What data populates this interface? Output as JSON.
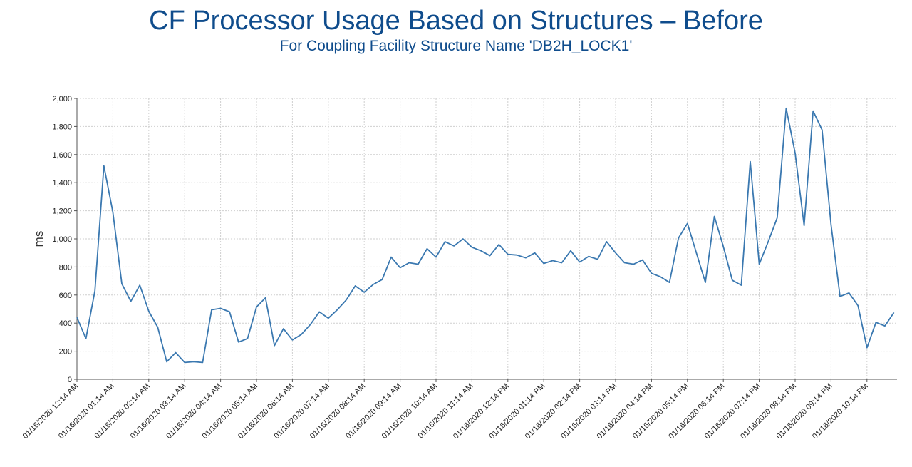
{
  "chart_data": {
    "type": "line",
    "title": "CF Processor Usage Based on Structures – Before",
    "subtitle": "For Coupling Facility Structure Name 'DB2H_LOCK1'",
    "xlabel": "",
    "ylabel": "ms",
    "ylim": [
      0,
      2000
    ],
    "yticks": [
      "0",
      "200",
      "400",
      "600",
      "800",
      "1,000",
      "1,200",
      "1,400",
      "1,600",
      "1,800",
      "2,000"
    ],
    "grid": true,
    "line_color": "#3a78b0",
    "title_color": "#0f4c8c",
    "x_tick_labels": [
      "01/16/2020 12:14 AM",
      "01/16/2020 01:14 AM",
      "01/16/2020 02:14 AM",
      "01/16/2020 03:14 AM",
      "01/16/2020 04:14 AM",
      "01/16/2020 05:14 AM",
      "01/16/2020 06:14 AM",
      "01/16/2020 07:14 AM",
      "01/16/2020 08:14 AM",
      "01/16/2020 09:14 AM",
      "01/16/2020 10:14 AM",
      "01/16/2020 11:14 AM",
      "01/16/2020 12:14 PM",
      "01/16/2020 01:14 PM",
      "01/16/2020 02:14 PM",
      "01/16/2020 03:14 PM",
      "01/16/2020 04:14 PM",
      "01/16/2020 05:14 PM",
      "01/16/2020 06:14 PM",
      "01/16/2020 07:14 PM",
      "01/16/2020 08:14 PM",
      "01/16/2020 09:14 PM",
      "01/16/2020 10:14 PM"
    ],
    "samples_per_hour": 4,
    "series": [
      {
        "values": [
          440,
          290,
          630,
          1520,
          1190,
          680,
          555,
          670,
          485,
          370,
          125,
          190,
          120,
          125,
          120,
          495,
          505,
          480,
          265,
          290,
          515,
          580,
          240,
          360,
          280,
          320,
          390,
          480,
          435,
          495,
          565,
          665,
          620,
          675,
          710,
          870,
          795,
          830,
          820,
          930,
          870,
          980,
          950,
          1000,
          940,
          915,
          880,
          960,
          890,
          885,
          865,
          900,
          825,
          845,
          830,
          915,
          835,
          875,
          855,
          980,
          900,
          830,
          820,
          850,
          755,
          730,
          690,
          1005,
          1110,
          900,
          690,
          1160,
          945,
          705,
          670,
          1550,
          820,
          980,
          1150,
          1930,
          1610,
          1095,
          1910,
          1775,
          1100,
          590,
          615,
          525,
          225,
          405,
          380,
          475
        ]
      }
    ]
  }
}
